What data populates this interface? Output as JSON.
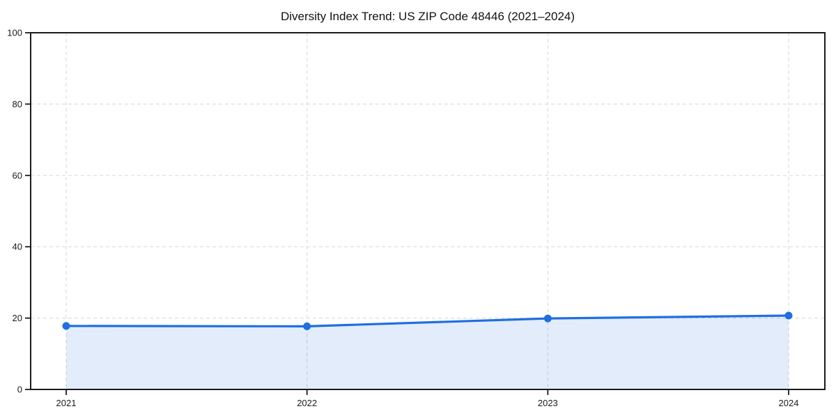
{
  "chart_data": {
    "type": "area",
    "title": "Diversity Index Trend: US ZIP Code 48446 (2021–2024)",
    "categories": [
      "2021",
      "2022",
      "2023",
      "2024"
    ],
    "series": [
      {
        "name": "Diversity Index",
        "values": [
          17.8,
          17.7,
          19.9,
          20.7
        ]
      }
    ],
    "xlabel": "",
    "ylabel": "",
    "ylim": [
      0,
      100
    ],
    "yticks": [
      0,
      20,
      40,
      60,
      80,
      100
    ],
    "grid": true,
    "grid_style": "dashed",
    "legend": false,
    "marker": "circle",
    "colors": {
      "line": "#1f6fe0",
      "marker": "#1f6fe0",
      "fill": "rgba(31,111,224,0.13)",
      "grid": "#dcdcdc",
      "spine": "#1a1a1a",
      "tick_label": "#1a1a1a",
      "title": "#111111",
      "background": "#ffffff"
    }
  }
}
